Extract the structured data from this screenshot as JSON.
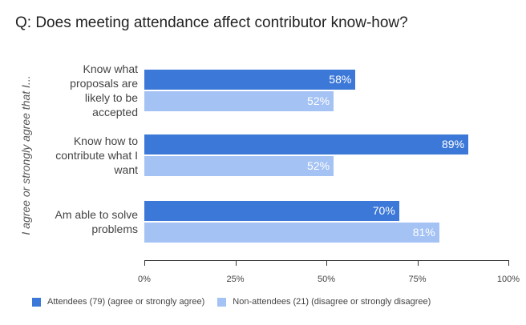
{
  "chart_data": {
    "type": "bar",
    "orientation": "horizontal",
    "title": "Q: Does meeting attendance affect contributor know-how?",
    "ylabel": "I agree or strongly agree that I...",
    "xlabel": "",
    "categories": [
      "Know what proposals are likely to be accepted",
      "Know how to contribute what I want",
      "Am able to solve problems"
    ],
    "series": [
      {
        "name": "Attendees (79) (agree or strongly agree)",
        "color": "#3c78d8",
        "values": [
          58,
          89,
          70
        ],
        "labels": [
          "58%",
          "89%",
          "70%"
        ]
      },
      {
        "name": "Non-attendees (21) (disagree or strongly disagree)",
        "color": "#a4c2f4",
        "values": [
          52,
          52,
          81
        ],
        "labels": [
          "52%",
          "52%",
          "81%"
        ]
      }
    ],
    "xlim": [
      0,
      100
    ],
    "xticks": [
      "0%",
      "25%",
      "50%",
      "75%",
      "100%"
    ],
    "grid": false,
    "legend": "bottom"
  }
}
